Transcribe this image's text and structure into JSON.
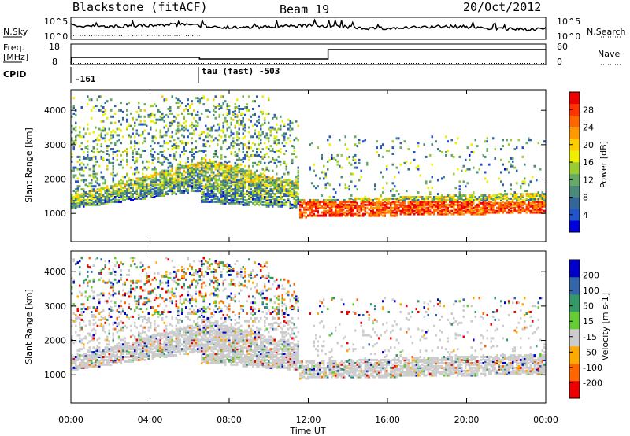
{
  "header": {
    "title": "Blackstone (fitACF)",
    "beam": "Beam 19",
    "date": "20/Oct/2012"
  },
  "top_panels": {
    "nsky_label": "N.Sky",
    "nsearch_label": "N.Search",
    "nsky_ticks": [
      "10^5",
      "10^0"
    ],
    "nsearch_ticks": [
      "10^5",
      "10^0"
    ],
    "freq_label_line1": "Freq.",
    "freq_label_line2": "[MHz]",
    "freq_ticks": [
      "18",
      "8"
    ],
    "nave_label": "Nave",
    "nave_ticks": [
      "60",
      "0"
    ],
    "cpid_label": "CPID",
    "cpid_segments": [
      {
        "text": "-161",
        "start_hour": 0
      },
      {
        "text": "tau (fast) -503",
        "start_hour": 6.5
      }
    ]
  },
  "colors": {
    "power": [
      "#0000dd",
      "#2255cc",
      "#336699",
      "#4a8a7a",
      "#66aa66",
      "#99cc33",
      "#eeee00",
      "#ffcc00",
      "#ff9900",
      "#ff6600",
      "#ff3300",
      "#ee0000"
    ],
    "velocity": [
      "#ee0000",
      "#ff6600",
      "#ffaa00",
      "#cccccc",
      "#66cc33",
      "#339966",
      "#3366aa",
      "#0000cc"
    ]
  },
  "chart_data": [
    {
      "type": "heatmap",
      "name": "power-panel",
      "title": "",
      "xlabel": "Time UT",
      "ylabel": "Slant Range [km]",
      "xlim_hours": [
        0,
        24
      ],
      "ylim_km": [
        180,
        4600
      ],
      "x_ticks": [
        "00:00",
        "04:00",
        "08:00",
        "12:00",
        "16:00",
        "20:00",
        "00:00"
      ],
      "y_ticks": [
        1000,
        2000,
        3000,
        4000
      ],
      "colorbar": {
        "label": "Power [dB]",
        "ticks": [
          4,
          8,
          12,
          16,
          20,
          24,
          28
        ]
      },
      "features": [
        {
          "desc": "main scatter band",
          "hours": [
            0,
            6.5
          ],
          "range_km": [
            1100,
            2500
          ],
          "power_db": 12
        },
        {
          "desc": "scatter band peak",
          "hours": [
            6.5,
            11.5
          ],
          "range_km": [
            1100,
            2700
          ],
          "power_db": 18
        },
        {
          "desc": "strong near-range echoes",
          "hours": [
            11.5,
            24
          ],
          "range_km": [
            900,
            1300
          ],
          "power_db": 26
        }
      ]
    },
    {
      "type": "heatmap",
      "name": "velocity-panel",
      "title": "",
      "xlabel": "Time UT",
      "ylabel": "Slant Range [km]",
      "xlim_hours": [
        0,
        24
      ],
      "ylim_km": [
        180,
        4600
      ],
      "x_ticks": [
        "00:00",
        "04:00",
        "08:00",
        "12:00",
        "16:00",
        "20:00",
        "00:00"
      ],
      "y_ticks": [
        1000,
        2000,
        3000,
        4000
      ],
      "colorbar": {
        "label": "Velocity [m s-1]",
        "ticks": [
          200,
          100,
          50,
          15,
          -15,
          -50,
          -100,
          -200
        ]
      },
      "features": [
        {
          "desc": "ground scatter",
          "hours": [
            0,
            24
          ],
          "range_km": [
            900,
            2600
          ],
          "velocity_ms": 0
        },
        {
          "desc": "ionospheric scatter",
          "hours": [
            0.5,
            10
          ],
          "range_km": [
            2700,
            4400
          ],
          "velocity_ms": -150
        }
      ]
    }
  ]
}
